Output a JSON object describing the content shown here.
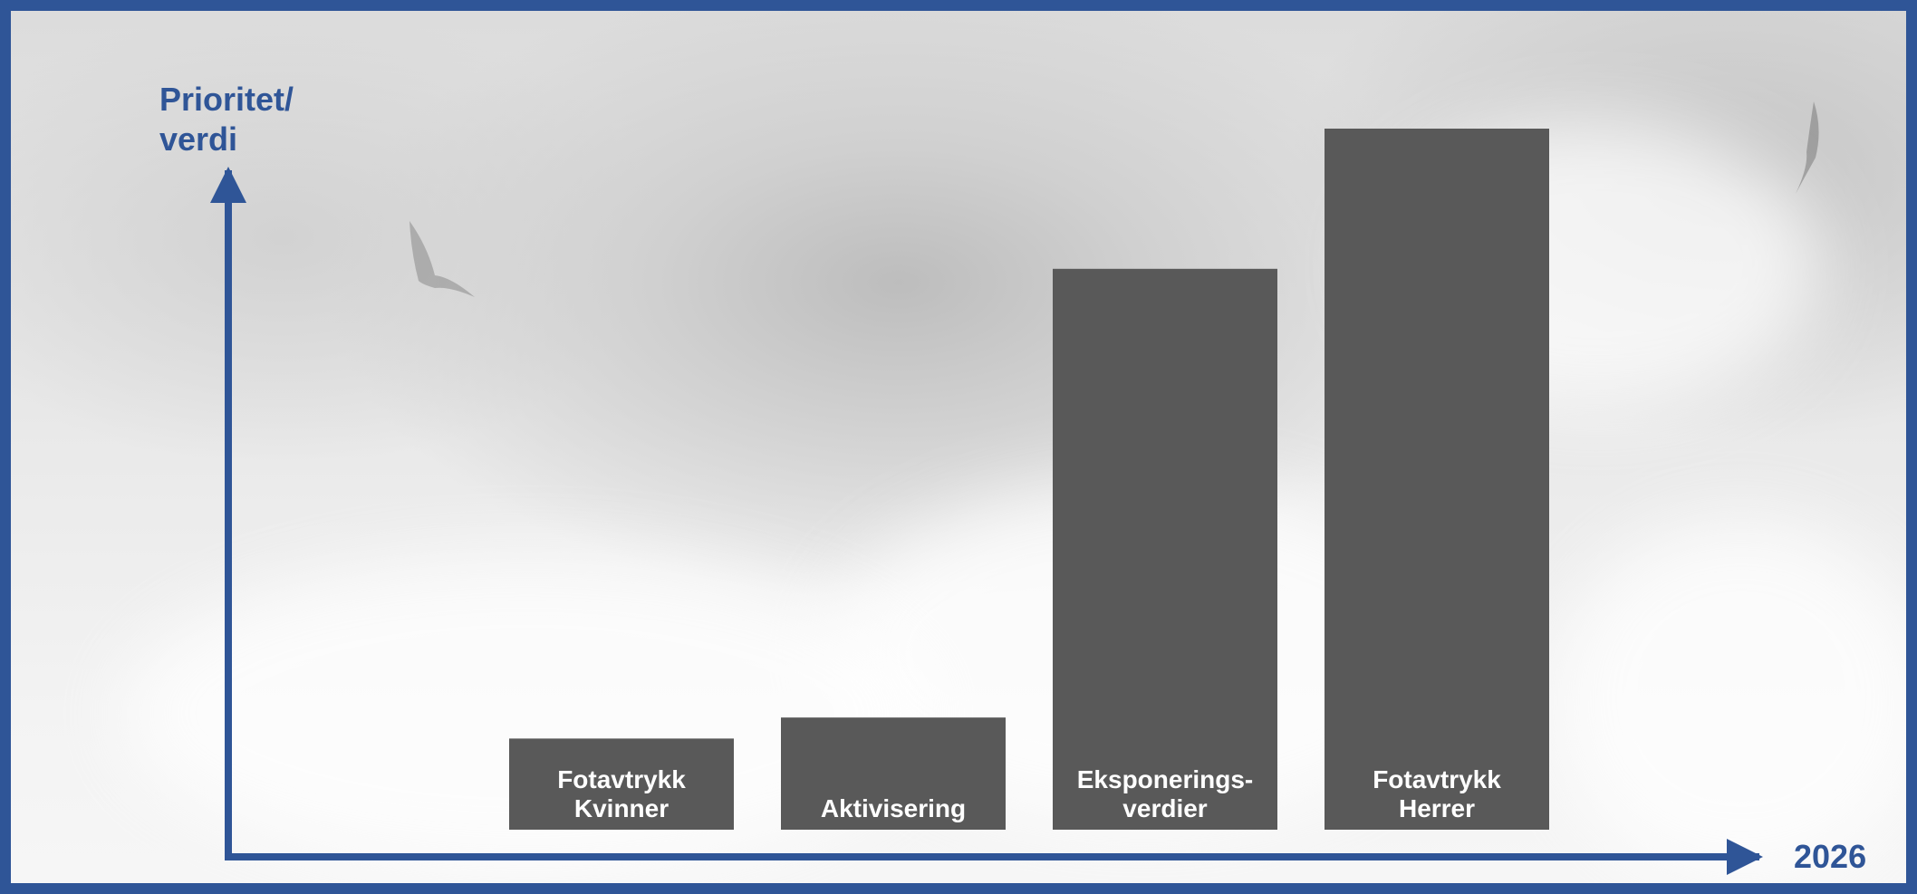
{
  "chart_data": {
    "type": "bar",
    "ylabel": "Prioritet/ verdi",
    "ylabel_lines": [
      "Prioritet/",
      "verdi"
    ],
    "xlabel": "2026",
    "categories": [
      {
        "label": "Fotavtrykk Kvinner",
        "lines": [
          "Fotavtrykk",
          "Kvinner"
        ]
      },
      {
        "label": "Aktivisering",
        "lines": [
          "Aktivisering"
        ]
      },
      {
        "label": "Eksponerings-verdier",
        "lines": [
          "Eksponerings-",
          "verdier"
        ]
      },
      {
        "label": "Fotavtrykk Herrer",
        "lines": [
          "Fotavtrykk",
          "Herrer"
        ]
      }
    ],
    "values": [
      13,
      16,
      80,
      100
    ],
    "ylim": [
      0,
      100
    ],
    "grid": false,
    "legend": "none",
    "bar_color": "#595959",
    "axis_color": "#2f5597",
    "label_color": "#ffffff"
  }
}
